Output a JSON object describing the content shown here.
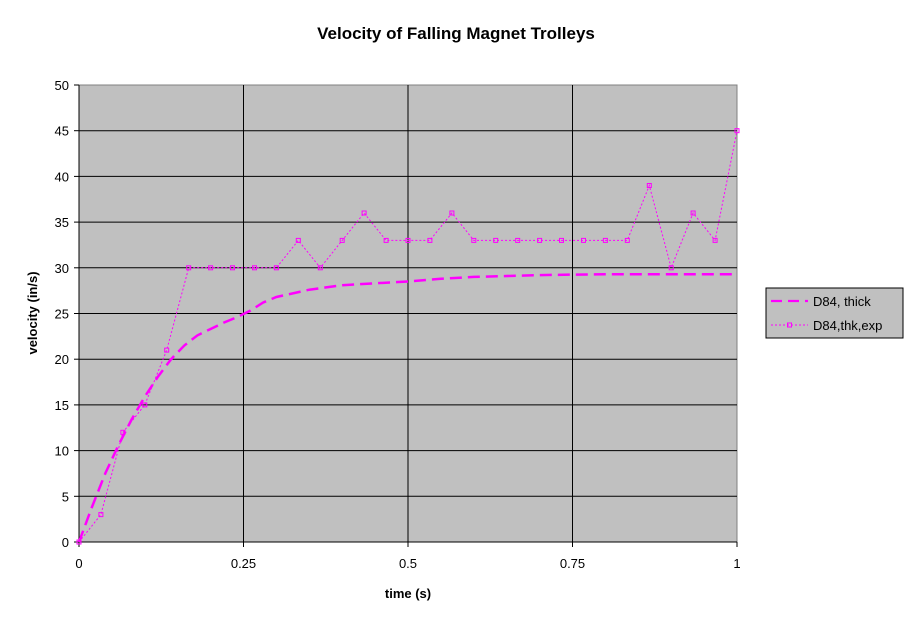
{
  "chart_data": {
    "type": "line",
    "title": "Velocity of Falling Magnet Trolleys",
    "xlabel": "time (s)",
    "ylabel": "velocity (in/s)",
    "xlim": [
      0,
      1
    ],
    "ylim": [
      0,
      50
    ],
    "x_ticks": [
      "0",
      "0.25",
      "0.5",
      "0.75",
      "1"
    ],
    "y_ticks": [
      "0",
      "5",
      "10",
      "15",
      "20",
      "25",
      "30",
      "35",
      "40",
      "45",
      "50"
    ],
    "grid": true,
    "legend_position": "right",
    "plot_background": "#c0c0c0",
    "series": [
      {
        "name": "D84, thick",
        "style": "dashed",
        "color": "#ff00ff",
        "x": [
          0,
          0.02,
          0.04,
          0.06,
          0.08,
          0.1,
          0.12,
          0.14,
          0.16,
          0.18,
          0.2,
          0.22,
          0.24,
          0.26,
          0.28,
          0.3,
          0.35,
          0.4,
          0.45,
          0.5,
          0.55,
          0.6,
          0.7,
          0.8,
          0.9,
          1.0
        ],
        "y": [
          0,
          3.9,
          7.5,
          10.6,
          13.4,
          15.9,
          18.1,
          20.0,
          21.5,
          22.6,
          23.3,
          24.0,
          24.6,
          25.3,
          26.2,
          26.8,
          27.6,
          28.1,
          28.3,
          28.5,
          28.8,
          29.0,
          29.2,
          29.3,
          29.3,
          29.3
        ]
      },
      {
        "name": "D84,thk,exp",
        "style": "dotted-markers",
        "color": "#ff00ff",
        "x": [
          0,
          0.0333,
          0.0667,
          0.1,
          0.1333,
          0.1667,
          0.2,
          0.2333,
          0.2667,
          0.3,
          0.3333,
          0.3667,
          0.4,
          0.4333,
          0.4667,
          0.5,
          0.5333,
          0.5667,
          0.6,
          0.6333,
          0.6667,
          0.7,
          0.7333,
          0.7667,
          0.8,
          0.8333,
          0.8667,
          0.9,
          0.9333,
          0.9667,
          1.0
        ],
        "y": [
          0,
          3,
          12,
          15,
          21,
          30,
          30,
          30,
          30,
          30,
          33,
          30,
          33,
          36,
          33,
          33,
          33,
          36,
          33,
          33,
          33,
          33,
          33,
          33,
          33,
          33,
          39,
          30,
          36,
          33,
          45
        ]
      }
    ]
  }
}
